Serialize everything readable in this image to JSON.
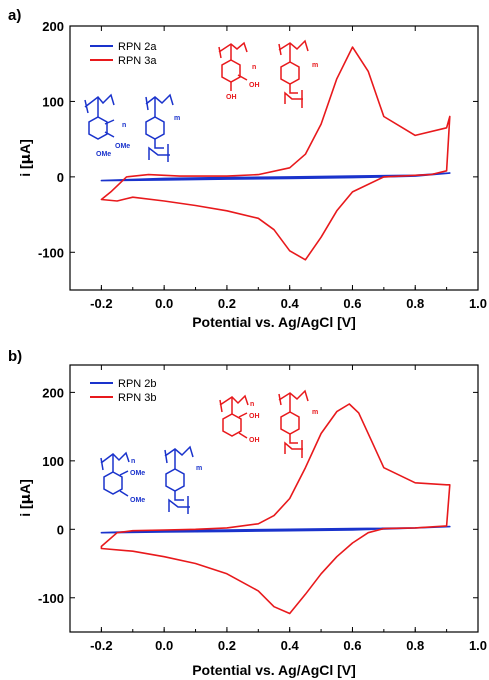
{
  "chart_data": [
    {
      "type": "line",
      "panel_label": "a)",
      "xlabel": "Potential vs. Ag/AgCl [V]",
      "ylabel_prefix": "i [",
      "ylabel_unit": "μ",
      "ylabel_suffix": "A]",
      "xlim": [
        -0.3,
        1.0
      ],
      "ylim": [
        -150,
        200
      ],
      "xticks": [
        "-0.2",
        "0.0",
        "0.2",
        "0.4",
        "0.6",
        "0.8",
        "1.0"
      ],
      "xtick_values": [
        -0.2,
        0.0,
        0.2,
        0.4,
        0.6,
        0.8,
        1.0
      ],
      "yticks": [
        "200",
        "100",
        "0",
        "-100"
      ],
      "ytick_values": [
        200,
        100,
        0,
        -100
      ],
      "grid": false,
      "legend_position": "top-left",
      "series": [
        {
          "name": "RPN 2a",
          "color": "#1a33cc",
          "x": [
            -0.2,
            0.0,
            0.2,
            0.4,
            0.6,
            0.8,
            0.91,
            0.8,
            0.6,
            0.4,
            0.2,
            0.0,
            -0.2
          ],
          "y": [
            -5,
            -4,
            -3,
            -2,
            -1,
            1,
            5,
            2,
            1,
            0,
            -1,
            -2,
            -5
          ]
        },
        {
          "name": "RPN 3a",
          "color": "#e8191c",
          "x": [
            -0.2,
            -0.17,
            -0.12,
            -0.05,
            0.05,
            0.2,
            0.3,
            0.4,
            0.45,
            0.5,
            0.55,
            0.6,
            0.65,
            0.7,
            0.8,
            0.9,
            0.91,
            0.9,
            0.85,
            0.8,
            0.7,
            0.6,
            0.55,
            0.5,
            0.45,
            0.4,
            0.35,
            0.3,
            0.2,
            0.1,
            0.0,
            -0.1,
            -0.15,
            -0.2
          ],
          "y": [
            -30,
            -20,
            0,
            3,
            1,
            1,
            3,
            12,
            30,
            70,
            130,
            172,
            140,
            80,
            55,
            65,
            80,
            8,
            3,
            2,
            0,
            -20,
            -45,
            -80,
            -110,
            -98,
            -70,
            -55,
            -45,
            -38,
            -32,
            -27,
            -32,
            -30
          ]
        }
      ],
      "structures": {
        "blue_left": {
          "substituent_1": "OMe",
          "substituent_2": "OMe",
          "subscript": "n"
        },
        "blue_right": {
          "subscript": "m"
        },
        "red_left": {
          "substituent_1": "OH",
          "substituent_2": "OH",
          "subscript": "n"
        },
        "red_right": {
          "subscript": "m"
        }
      }
    },
    {
      "type": "line",
      "panel_label": "b)",
      "xlabel": "Potential vs. Ag/AgCl [V]",
      "ylabel_prefix": "i [",
      "ylabel_unit": "μ",
      "ylabel_suffix": "A]",
      "xlim": [
        -0.3,
        1.0
      ],
      "ylim": [
        -150,
        240
      ],
      "xticks": [
        "-0.2",
        "0.0",
        "0.2",
        "0.4",
        "0.6",
        "0.8",
        "1.0"
      ],
      "xtick_values": [
        -0.2,
        0.0,
        0.2,
        0.4,
        0.6,
        0.8,
        1.0
      ],
      "yticks": [
        "200",
        "100",
        "0",
        "-100"
      ],
      "ytick_values": [
        200,
        100,
        0,
        -100
      ],
      "grid": false,
      "legend_position": "top-left",
      "series": [
        {
          "name": "RPN 2b",
          "color": "#1a33cc",
          "x": [
            -0.2,
            0.0,
            0.2,
            0.4,
            0.6,
            0.8,
            0.91,
            0.8,
            0.6,
            0.4,
            0.2,
            0.0,
            -0.2
          ],
          "y": [
            -5,
            -4,
            -3,
            -2,
            -1,
            2,
            4,
            2,
            1,
            0,
            -1,
            -2,
            -5
          ]
        },
        {
          "name": "RPN 3b",
          "color": "#e8191c",
          "x": [
            -0.2,
            -0.15,
            -0.1,
            0.0,
            0.1,
            0.2,
            0.3,
            0.35,
            0.4,
            0.45,
            0.5,
            0.55,
            0.59,
            0.62,
            0.66,
            0.7,
            0.8,
            0.9,
            0.91,
            0.9,
            0.8,
            0.7,
            0.65,
            0.6,
            0.55,
            0.5,
            0.45,
            0.4,
            0.35,
            0.3,
            0.2,
            0.1,
            0.0,
            -0.1,
            -0.2
          ],
          "y": [
            -25,
            -5,
            -2,
            -1,
            0,
            2,
            8,
            20,
            45,
            90,
            140,
            172,
            183,
            170,
            130,
            90,
            68,
            65,
            65,
            5,
            2,
            1,
            -5,
            -20,
            -40,
            -65,
            -95,
            -123,
            -113,
            -90,
            -65,
            -50,
            -40,
            -32,
            -28
          ]
        }
      ],
      "structures": {
        "blue_left": {
          "substituent_1": "OMe",
          "substituent_2": "OMe",
          "subscript": "n"
        },
        "blue_right": {
          "subscript": "m"
        },
        "red_left": {
          "substituent_1": "OH",
          "substituent_2": "OH",
          "subscript": "n"
        },
        "red_right": {
          "subscript": "m"
        }
      }
    }
  ]
}
